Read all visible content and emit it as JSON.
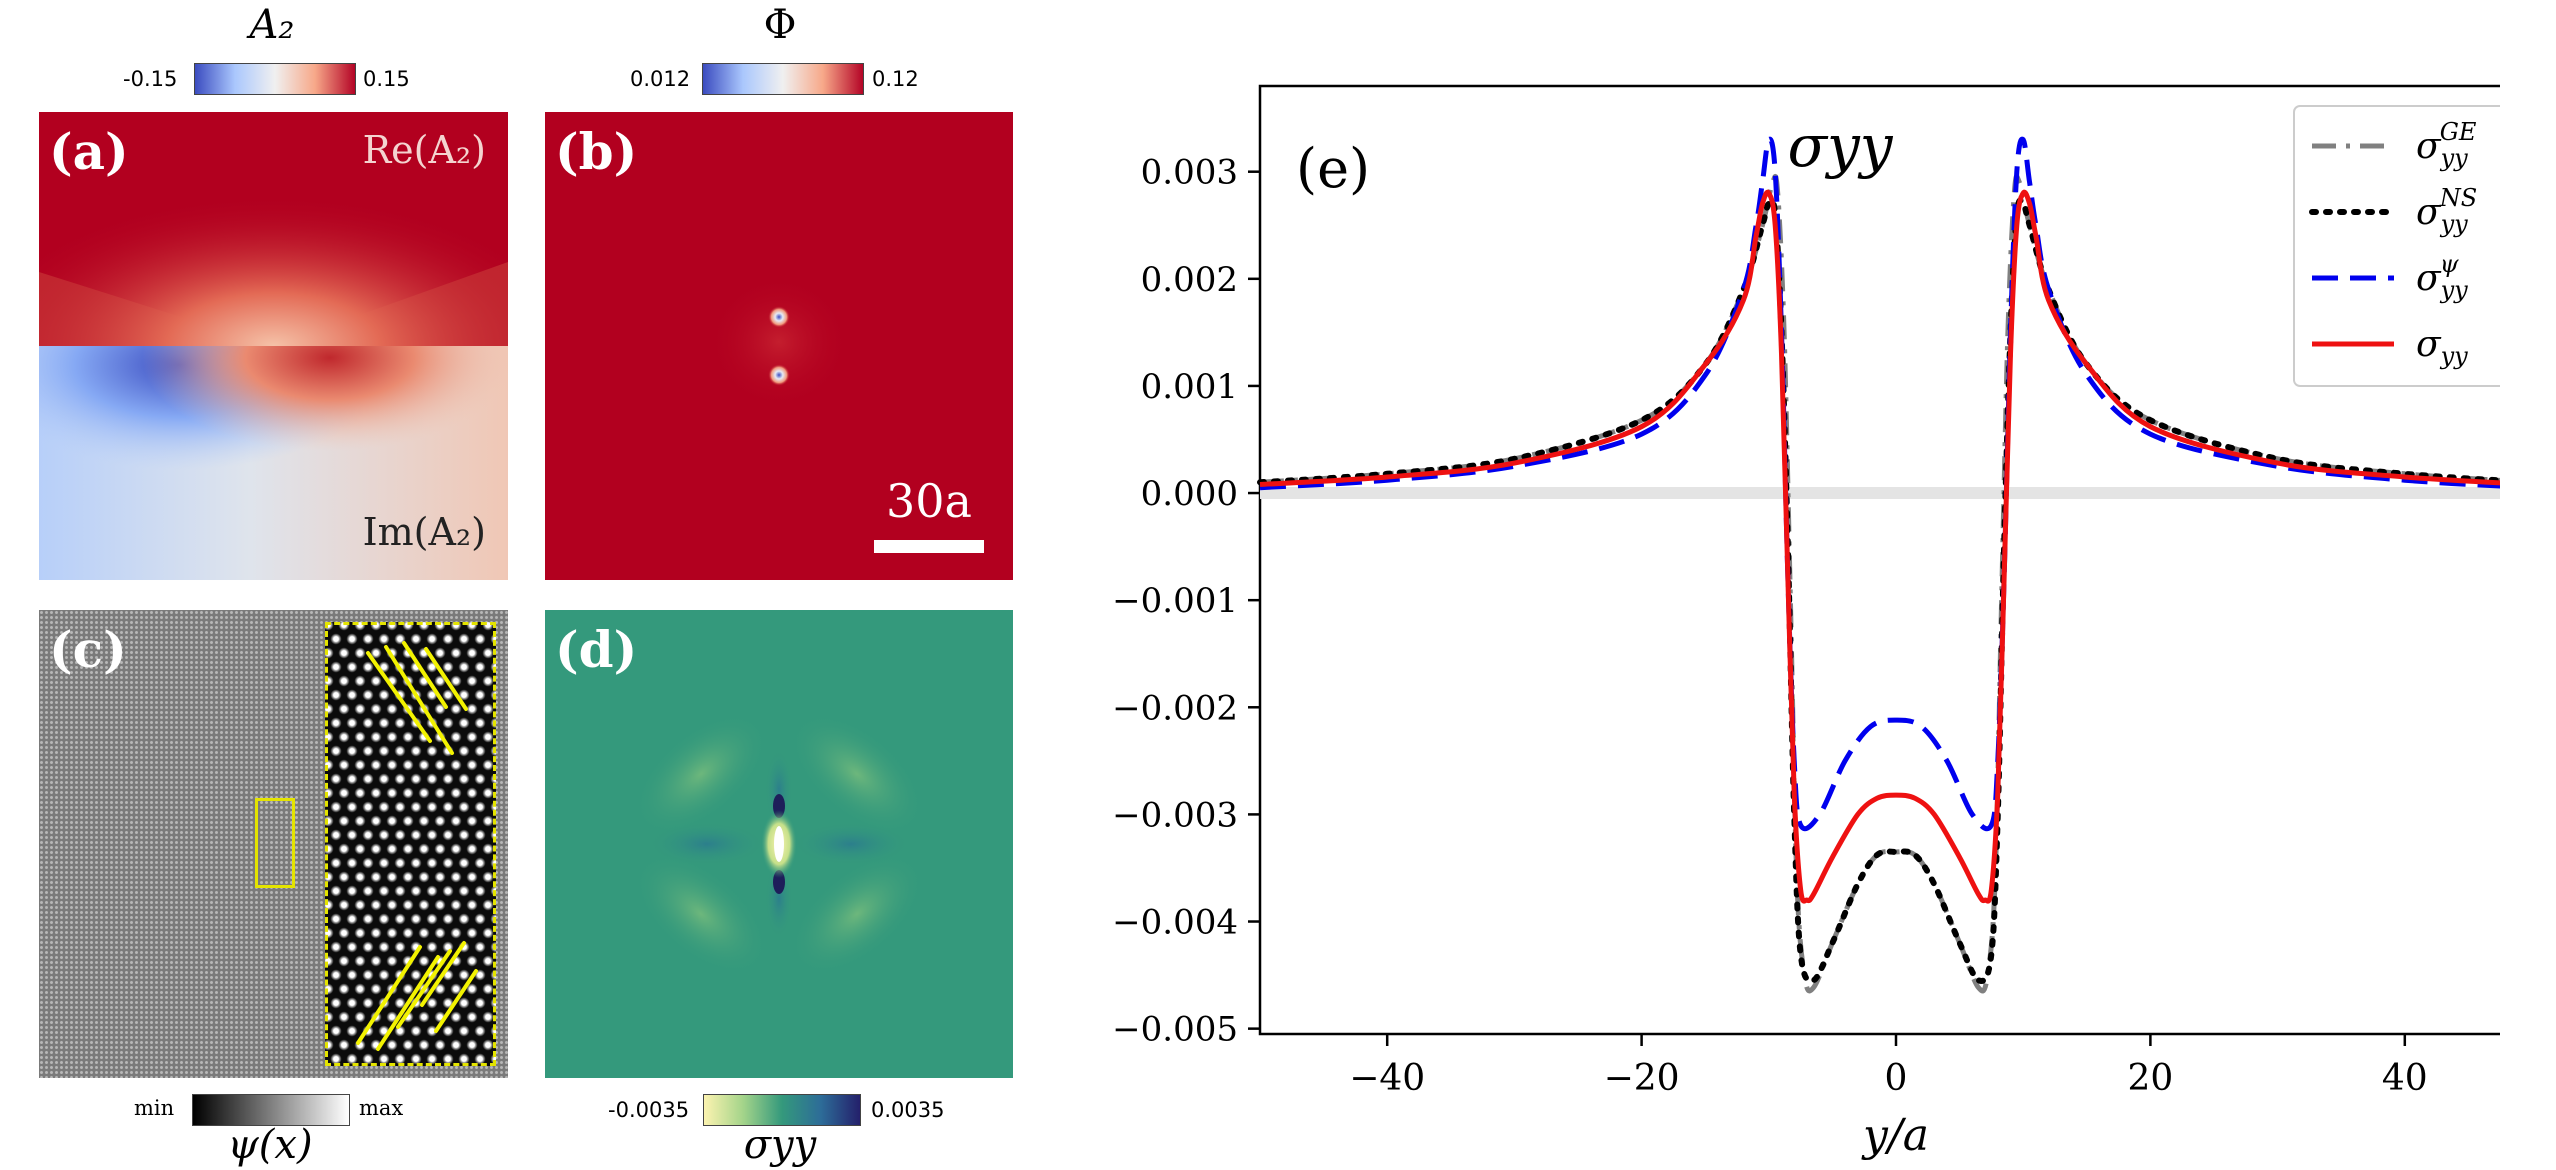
{
  "colorbars": {
    "a2": {
      "title": "A₂",
      "min": "-0.15",
      "max": "0.15"
    },
    "phi": {
      "title": "Φ",
      "min": "0.012",
      "max": "0.12"
    },
    "psi": {
      "title": "ψ(x)",
      "min": "min",
      "max": "max"
    },
    "sigma": {
      "title": "σyy",
      "min": "-0.0035",
      "max": "0.0035"
    }
  },
  "panels": {
    "a": {
      "label": "(a)",
      "top_text": "Re(A₂)",
      "bottom_text": "Im(A₂)"
    },
    "b": {
      "label": "(b)",
      "scale": "30a"
    },
    "c": {
      "label": "(c)"
    },
    "d": {
      "label": "(d)"
    },
    "e": {
      "label": "(e)",
      "title": "σyy"
    }
  },
  "colors": {
    "red": "#b2001f",
    "green": "#34997c",
    "blue": "#0000ee",
    "curve_red": "#ee1111",
    "gray": "#808080"
  },
  "chart_data": {
    "type": "line",
    "title": "σyy",
    "xlabel": "y/a",
    "ylabel": "",
    "xlim": [
      -50,
      50
    ],
    "ylim": [
      -0.00505,
      0.0038
    ],
    "xticks": [
      -40,
      -20,
      0,
      20,
      40
    ],
    "xtick_labels": [
      "−40",
      "−20",
      "0",
      "20",
      "40"
    ],
    "yticks": [
      0.003,
      0.002,
      0.001,
      0.0,
      -0.001,
      -0.002,
      -0.003,
      -0.004,
      -0.005
    ],
    "ytick_labels": [
      "0.003",
      "0.002",
      "0.001",
      "0.000",
      "−0.001",
      "−0.002",
      "−0.003",
      "−0.004",
      "−0.005"
    ],
    "legend_position": "top-right",
    "series": [
      {
        "name": "σyy^GE",
        "legend": "σ",
        "sub": "yy",
        "sup": "GE",
        "style": "dashdot",
        "color": "#808080",
        "x": [
          -50,
          -40,
          -30,
          -20,
          -15,
          -12,
          -10.5,
          -9.7,
          -9.3,
          -8.8,
          -8.3,
          -7.8,
          -7.2,
          -6.5,
          -5,
          -3,
          -1.5,
          0,
          1.5,
          3,
          5,
          6.5,
          7.2,
          7.8,
          8.3,
          8.8,
          9.3,
          9.7,
          10.5,
          12,
          15,
          20,
          30,
          40,
          50
        ],
        "y": [
          0.0001,
          0.00018,
          0.00032,
          0.00068,
          0.0012,
          0.0019,
          0.0025,
          0.0029,
          0.0028,
          0.0015,
          -0.001,
          -0.0036,
          -0.0045,
          -0.00462,
          -0.0042,
          -0.00365,
          -0.00338,
          -0.00335,
          -0.00338,
          -0.00365,
          -0.0042,
          -0.00462,
          -0.0045,
          -0.0036,
          -0.001,
          0.0015,
          0.0028,
          0.0029,
          0.0025,
          0.0019,
          0.0012,
          0.00068,
          0.00032,
          0.00018,
          0.0001
        ]
      },
      {
        "name": "σyy^NS",
        "legend": "σ",
        "sub": "yy",
        "sup": "NS",
        "style": "dotted",
        "color": "#000000",
        "x": [
          -50,
          -40,
          -30,
          -20,
          -15,
          -12,
          -10.5,
          -10,
          -9.5,
          -9,
          -8.5,
          -8,
          -7.5,
          -6.5,
          -5,
          -3,
          -1.5,
          0,
          1.5,
          3,
          5,
          6.5,
          7.5,
          8,
          8.5,
          9,
          9.5,
          10,
          10.5,
          12,
          15,
          20,
          30,
          40,
          50
        ],
        "y": [
          0.0001,
          0.00018,
          0.00032,
          0.00068,
          0.0012,
          0.0019,
          0.0025,
          0.0027,
          0.0026,
          0.0015,
          -0.0005,
          -0.003,
          -0.0043,
          -0.00455,
          -0.0042,
          -0.00365,
          -0.00338,
          -0.00335,
          -0.00338,
          -0.00365,
          -0.0042,
          -0.00455,
          -0.0043,
          -0.003,
          -0.0005,
          0.0015,
          0.0026,
          0.0027,
          0.0025,
          0.0019,
          0.0012,
          0.00068,
          0.00032,
          0.00018,
          0.0001
        ]
      },
      {
        "name": "σyy^ψ",
        "legend": "σ",
        "sub": "yy",
        "sup": "ψ",
        "style": "dashed",
        "color": "#0000ee",
        "x": [
          -50,
          -40,
          -30,
          -20,
          -15,
          -12,
          -11,
          -10.5,
          -10,
          -9.5,
          -9,
          -8.5,
          -8,
          -7.5,
          -6,
          -4,
          -2,
          0,
          2,
          4,
          6,
          7.5,
          8,
          8.5,
          9,
          9.5,
          10,
          10.5,
          11,
          12,
          15,
          20,
          30,
          40,
          50
        ],
        "y": [
          5e-05,
          0.00012,
          0.00025,
          0.00055,
          0.0011,
          0.0019,
          0.0025,
          0.0029,
          0.0033,
          0.003,
          0.0015,
          -0.0008,
          -0.0025,
          -0.0031,
          -0.003,
          -0.0025,
          -0.00218,
          -0.00212,
          -0.00218,
          -0.0025,
          -0.003,
          -0.0031,
          -0.0025,
          -0.0008,
          0.0015,
          0.003,
          0.0033,
          0.0029,
          0.0025,
          0.0019,
          0.0011,
          0.00055,
          0.00025,
          0.00012,
          5e-05
        ]
      },
      {
        "name": "σyy",
        "legend": "σ",
        "sub": "yy",
        "sup": "",
        "style": "solid",
        "color": "#ee1111",
        "x": [
          -50,
          -40,
          -30,
          -20,
          -15,
          -12,
          -11,
          -10.5,
          -10,
          -9.5,
          -9,
          -8.5,
          -8,
          -7.5,
          -7,
          -6.5,
          -5,
          -3,
          -1.5,
          0,
          1.5,
          3,
          5,
          6.5,
          7,
          7.5,
          8,
          8.5,
          9,
          9.5,
          10,
          10.5,
          11,
          12,
          15,
          20,
          30,
          40,
          50
        ],
        "y": [
          8e-05,
          0.00015,
          0.00028,
          0.00062,
          0.0012,
          0.0018,
          0.0024,
          0.0027,
          0.0028,
          0.0025,
          0.0013,
          -0.0008,
          -0.0028,
          -0.0037,
          -0.0038,
          -0.00375,
          -0.0034,
          -0.003,
          -0.00285,
          -0.00282,
          -0.00285,
          -0.003,
          -0.0034,
          -0.00375,
          -0.0038,
          -0.0037,
          -0.0028,
          -0.0008,
          0.0013,
          0.0025,
          0.0028,
          0.0027,
          0.0024,
          0.0018,
          0.0012,
          0.00062,
          0.00028,
          0.00015,
          8e-05
        ]
      }
    ]
  }
}
